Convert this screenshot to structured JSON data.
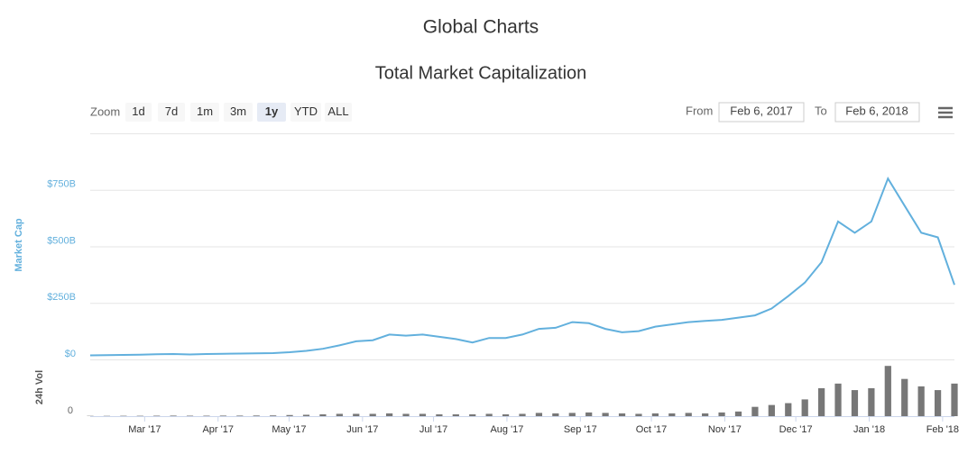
{
  "header": {
    "title": "Global Charts"
  },
  "toolbar": {
    "zoom_label": "Zoom",
    "buttons": [
      "1d",
      "7d",
      "1m",
      "3m",
      "1y",
      "YTD",
      "ALL"
    ],
    "selected": 4,
    "from_label": "From",
    "from": "Feb 6, 2017",
    "to_label": "To",
    "to": "Feb 6, 2018"
  },
  "chart_data": [
    {
      "type": "line",
      "title": "Total Market Capitalization",
      "y_label": "Market Cap",
      "color": "#62b0dd",
      "xlim": [
        "2017-02-06",
        "2018-02-06"
      ],
      "values": [
        18,
        19,
        20,
        21,
        23,
        24,
        22,
        24,
        25,
        26,
        27,
        28,
        32,
        38,
        47,
        62,
        80,
        85,
        110,
        105,
        110,
        100,
        90,
        75,
        95,
        95,
        110,
        135,
        140,
        165,
        160,
        135,
        120,
        125,
        145,
        155,
        165,
        170,
        175,
        185,
        195,
        225,
        280,
        340,
        430,
        610,
        560,
        610,
        800,
        680,
        560,
        540,
        330
      ],
      "ylim": [
        0,
        1000
      ],
      "yticks": [
        {
          "value": 0,
          "label": "$0"
        },
        {
          "value": 250,
          "label": "$250B"
        },
        {
          "value": 500,
          "label": "$500B"
        },
        {
          "value": 750,
          "label": "$750B"
        }
      ],
      "grid": true
    },
    {
      "type": "bar",
      "y_label": "24h Vol",
      "color": "#777777",
      "xlim": [
        "2017-02-06",
        "2018-02-06"
      ],
      "values": [
        0.3,
        0.3,
        0.4,
        0.4,
        0.5,
        0.6,
        0.5,
        0.5,
        0.6,
        0.6,
        0.7,
        0.8,
        1.2,
        1.5,
        2,
        2.5,
        2.5,
        2.5,
        3,
        2.5,
        2.5,
        2,
        2,
        2,
        2.5,
        2,
        2.5,
        3.5,
        3,
        3.5,
        4,
        3.5,
        3,
        2.5,
        3,
        3,
        3.5,
        3,
        4,
        5,
        10,
        12,
        14,
        18,
        30,
        35,
        28,
        30,
        54,
        40,
        32,
        28,
        35
      ],
      "ylim": [
        0,
        60
      ],
      "yticks": [
        0
      ],
      "xticks": [
        {
          "value": "2017-03",
          "label": "Mar '17"
        },
        {
          "value": "2017-04",
          "label": "Apr '17"
        },
        {
          "value": "2017-05",
          "label": "May '17"
        },
        {
          "value": "2017-06",
          "label": "Jun '17"
        },
        {
          "value": "2017-07",
          "label": "Jul '17"
        },
        {
          "value": "2017-08",
          "label": "Aug '17"
        },
        {
          "value": "2017-09",
          "label": "Sep '17"
        },
        {
          "value": "2017-10",
          "label": "Oct '17"
        },
        {
          "value": "2017-11",
          "label": "Nov '17"
        },
        {
          "value": "2017-12",
          "label": "Dec '17"
        },
        {
          "value": "2018-01",
          "label": "Jan '18"
        },
        {
          "value": "2018-02",
          "label": "Feb '18"
        }
      ]
    }
  ]
}
